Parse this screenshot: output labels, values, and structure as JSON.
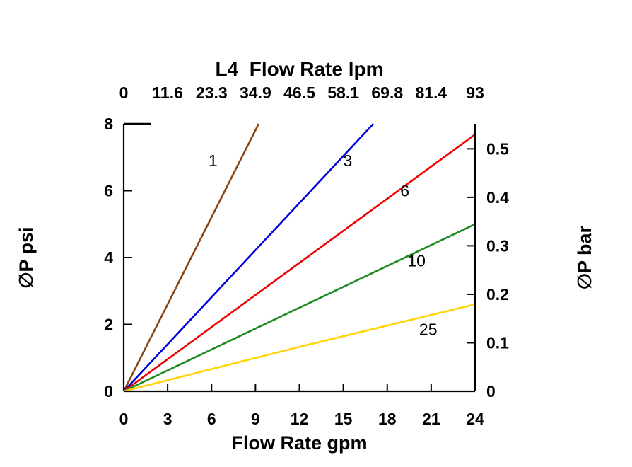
{
  "chart_data": {
    "type": "line",
    "title": "L4  Flow Rate lpm",
    "xlabel": "Flow Rate gpm",
    "ylabel_left": "∅P psi",
    "ylabel_right": "∅P bar",
    "x_axis": {
      "min": 0,
      "max": 24,
      "ticks": [
        0,
        3,
        6,
        9,
        12,
        15,
        18,
        21,
        24
      ],
      "tick_labels": [
        "0",
        "3",
        "6",
        "9",
        "12",
        "15",
        "18",
        "21",
        "24"
      ]
    },
    "top_axis": {
      "tick_positions": [
        0,
        3,
        6,
        9,
        12,
        15,
        18,
        21,
        24
      ],
      "tick_labels": [
        "0",
        "11.6",
        "23.3",
        "34.9",
        "46.5",
        "58.1",
        "69.8",
        "81.4",
        "93"
      ]
    },
    "y_axis_left": {
      "min": 0,
      "max": 8,
      "ticks": [
        0,
        2,
        4,
        6,
        8
      ],
      "tick_labels": [
        "0",
        "2",
        "4",
        "6",
        "8"
      ]
    },
    "y_axis_right": {
      "unit": "bar",
      "psi_per_bar": 14.5038,
      "ticks": [
        0,
        0.1,
        0.2,
        0.3,
        0.4,
        0.5
      ],
      "tick_labels": [
        "0",
        "0.1",
        "0.2",
        "0.3",
        "0.4",
        "0.5"
      ]
    },
    "series": [
      {
        "name": "1",
        "color": "#8a4513",
        "points": [
          [
            0,
            0
          ],
          [
            9.22,
            8
          ]
        ]
      },
      {
        "name": "3",
        "color": "#0000dd",
        "points": [
          [
            0,
            0
          ],
          [
            17.05,
            8
          ]
        ]
      },
      {
        "name": "6",
        "color": "#ee0000",
        "points": [
          [
            0,
            0
          ],
          [
            24,
            7.68
          ]
        ]
      },
      {
        "name": "10",
        "color": "#1f8a1f",
        "points": [
          [
            0,
            0
          ],
          [
            24,
            5.0
          ]
        ]
      },
      {
        "name": "25",
        "color": "#ffd400",
        "points": [
          [
            0,
            0
          ],
          [
            12,
            1.33
          ],
          [
            24,
            2.6
          ]
        ]
      }
    ],
    "series_labels": [
      {
        "text": "1",
        "x": 6.1,
        "y": 6.9
      },
      {
        "text": "3",
        "x": 15.3,
        "y": 6.9
      },
      {
        "text": "6",
        "x": 19.2,
        "y": 6.0
      },
      {
        "text": "10",
        "x": 20.0,
        "y": 3.9
      },
      {
        "text": "25",
        "x": 20.8,
        "y": 1.85
      }
    ],
    "axis_color": "#000000",
    "background": "#ffffff"
  }
}
